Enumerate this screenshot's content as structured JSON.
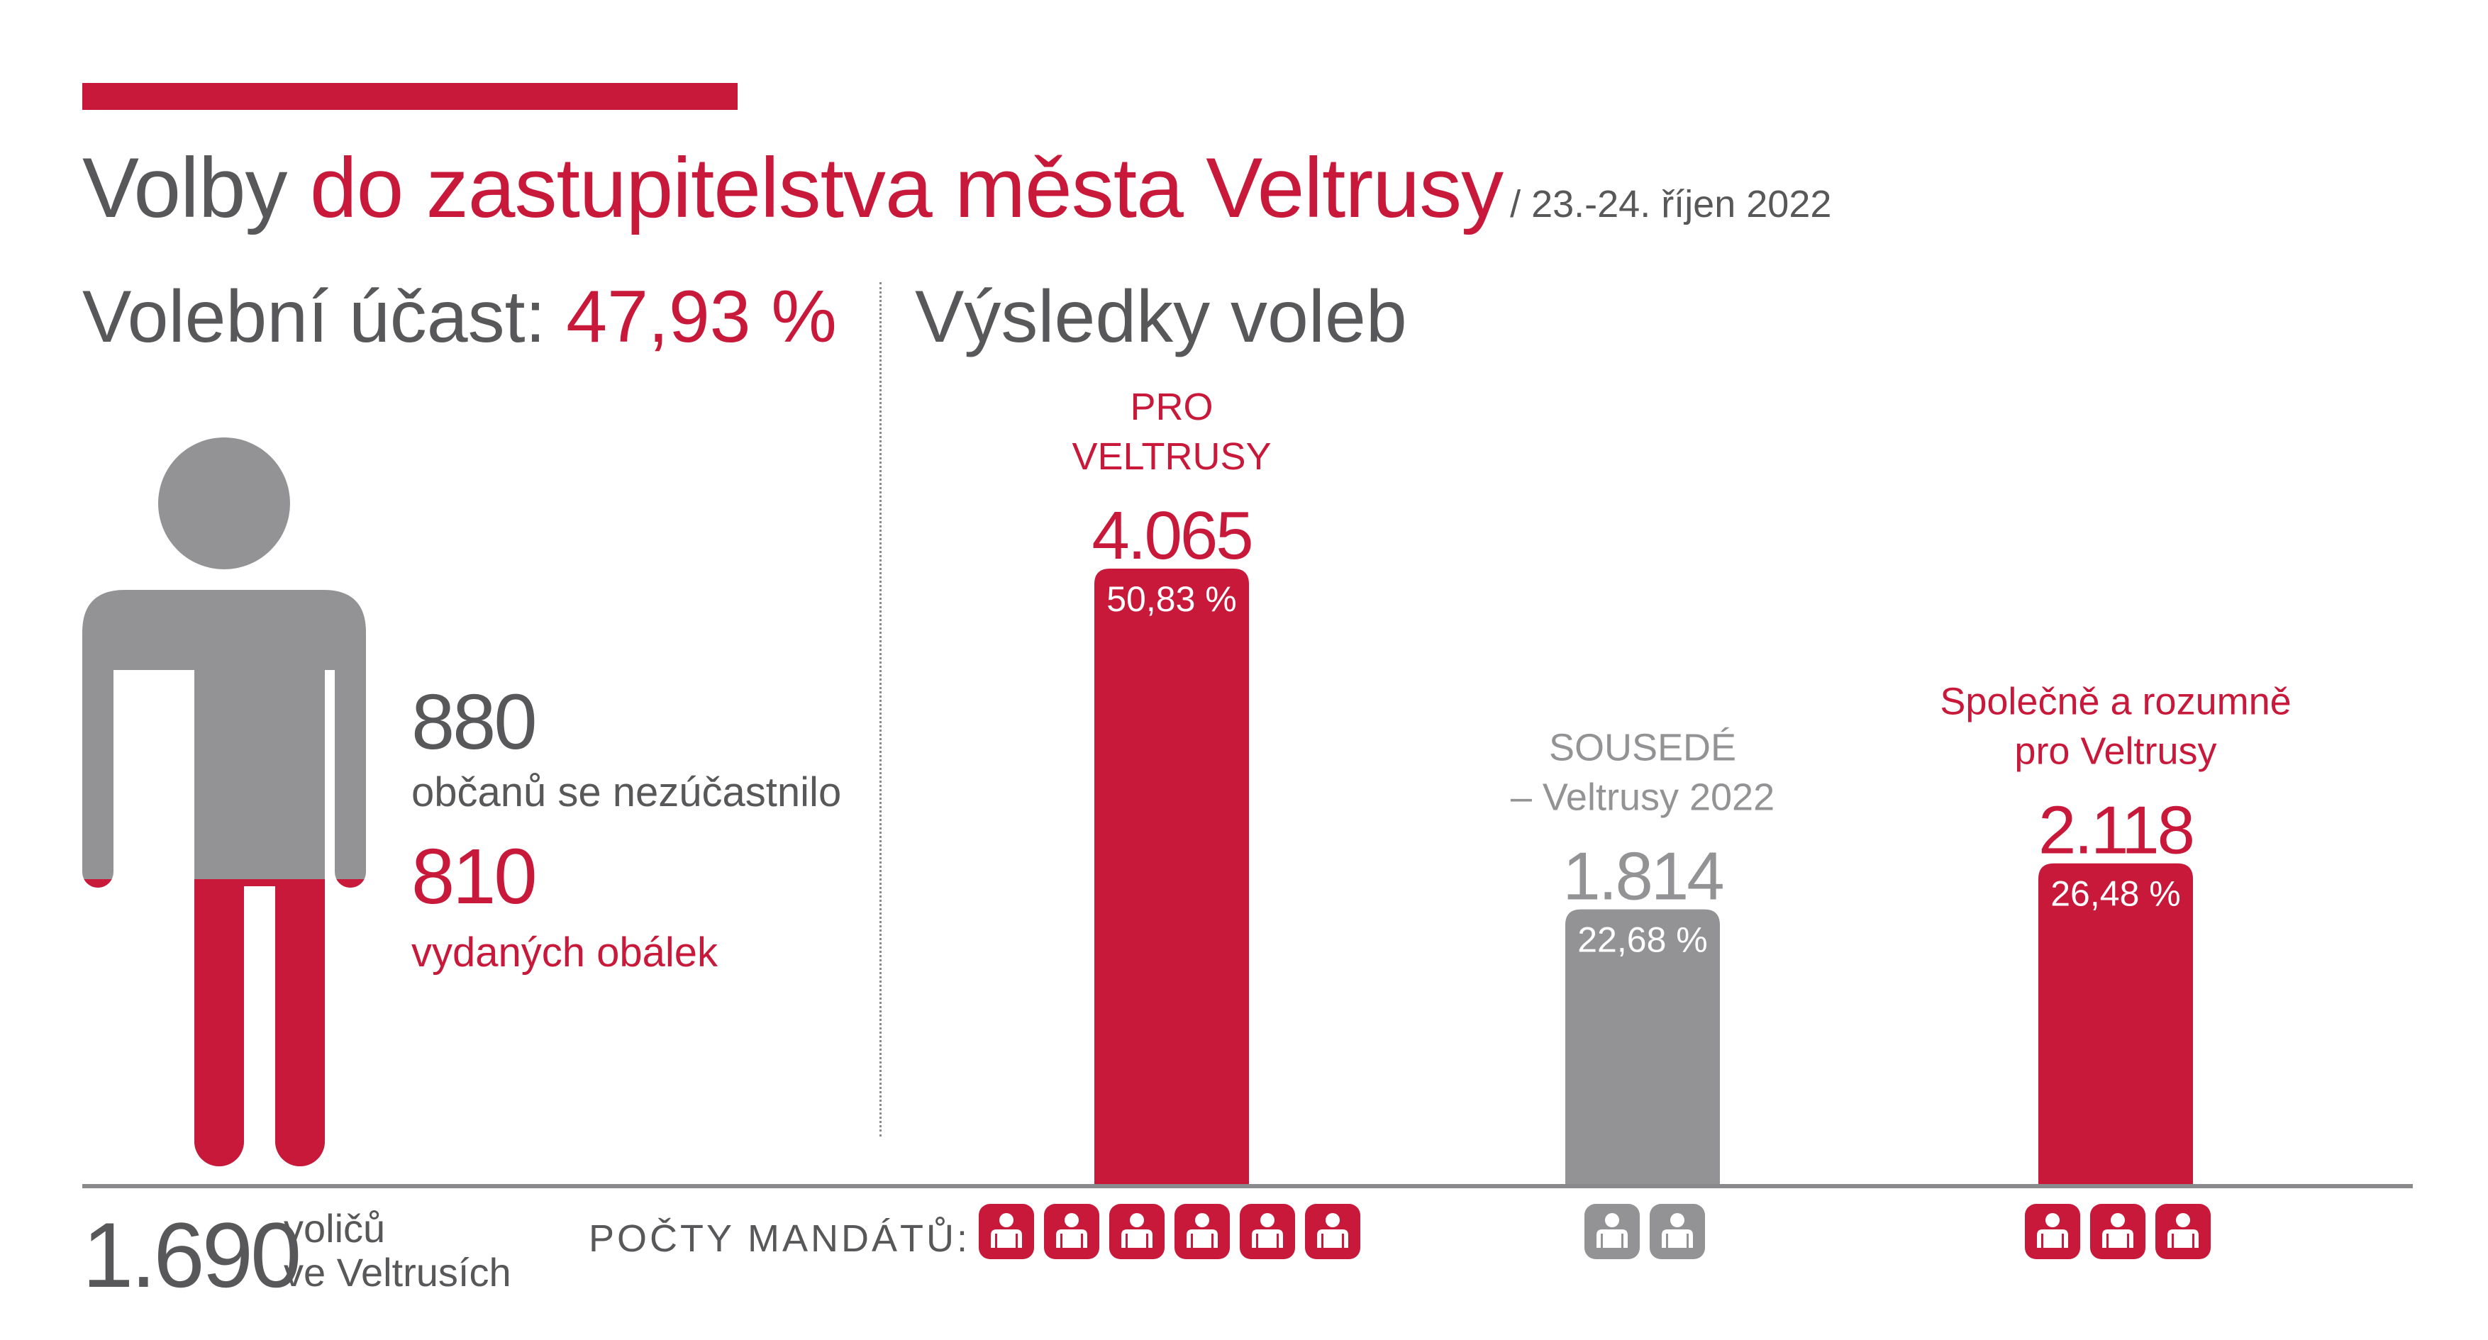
{
  "colors": {
    "red": "#c8193b",
    "gray": "#939396",
    "text": "#58585a",
    "white": "#ffffff"
  },
  "title": {
    "part1": "Volby ",
    "part2": "do zastupitelstva města ",
    "part3": "Veltrusy",
    "date": "/ 23.-24. říjen 2022"
  },
  "turnout": {
    "label": "Volební účast: ",
    "value": "47,93 %",
    "fraction": 0.4793
  },
  "results_title": "Výsledky voleb",
  "non_participants": {
    "number": "880",
    "label": "občanů se nezúčastnilo"
  },
  "envelopes": {
    "number": "810",
    "label": "vydaných obálek"
  },
  "voters": {
    "number": "1.690",
    "label_line1": "voličů",
    "label_line2": "ve Veltrusích"
  },
  "mandates_label": "POČTY MANDÁTŮ:",
  "person_icon": "person-silhouette-icon",
  "mandate_icon": "person-seat-icon",
  "chart_data": {
    "type": "bar",
    "title": "Výsledky voleb",
    "categories": [
      "PRO VELTRUSY",
      "SOUSEDÉ – Veltrusy 2022",
      "Společně a rozumně pro Veltrusy"
    ],
    "category_lines": [
      [
        "PRO",
        "VELTRUSY"
      ],
      [
        "SOUSEDÉ",
        "– Veltrusy 2022"
      ],
      [
        "Společně a rozumně",
        "pro Veltrusy"
      ]
    ],
    "values": [
      4065,
      1814,
      2118
    ],
    "value_labels": [
      "4.065",
      "1.814",
      "2.118"
    ],
    "percent_labels": [
      "50,83 %",
      "22,68 %",
      "26,48 %"
    ],
    "mandates": [
      6,
      2,
      3
    ],
    "bar_colors": [
      "#c8193b",
      "#939396",
      "#c8193b"
    ],
    "ylim": [
      0,
      4065
    ],
    "grid": false,
    "legend": "none"
  }
}
